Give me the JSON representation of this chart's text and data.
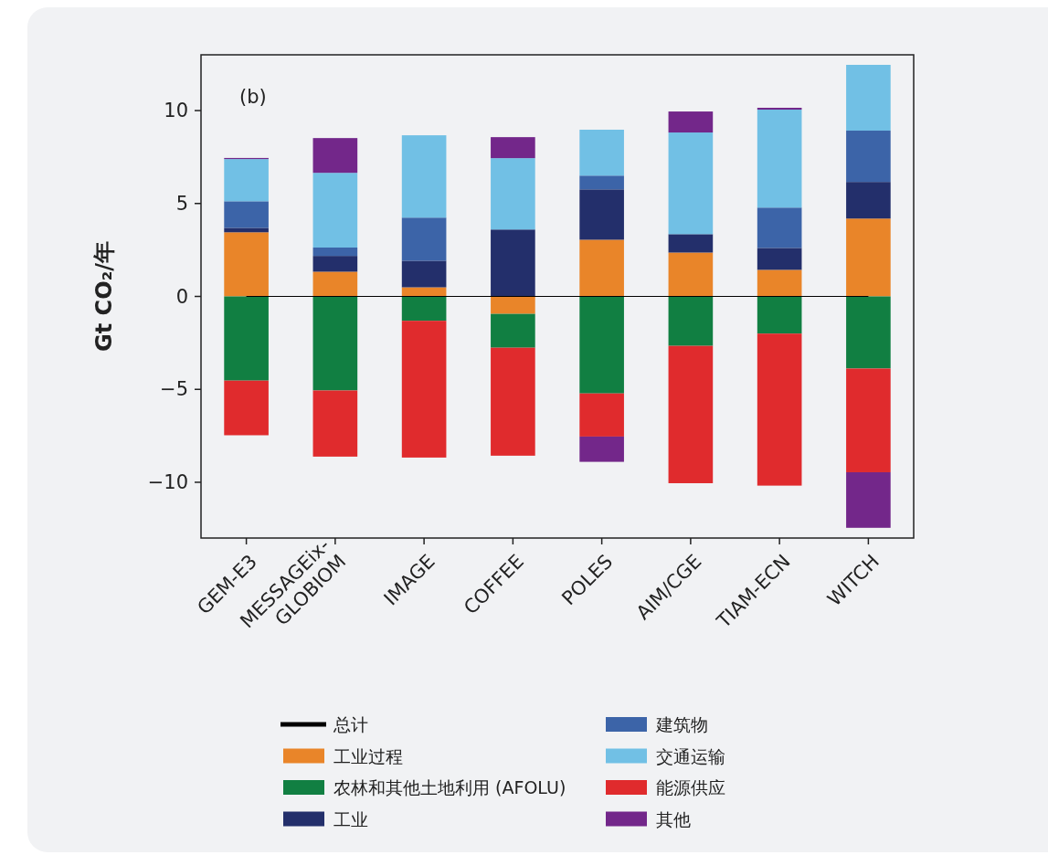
{
  "chart_data": {
    "type": "bar",
    "stacked": true,
    "ylabel": "Gt CO₂/年",
    "annotations": [
      "(b)"
    ],
    "categories": [
      "GEM-E3",
      "MESSAGEix-GLOBIOM",
      "IMAGE",
      "COFFEE",
      "POLES",
      "AIM/CGE",
      "TIAM-ECN",
      "WITCH"
    ],
    "ylim": [
      -13,
      13
    ],
    "yticks": [
      -10,
      -5,
      0,
      5,
      10
    ],
    "legend": "bottom",
    "series": [
      {
        "name": "总计",
        "type": "line",
        "color": "#000000",
        "values": [
          0,
          0,
          0,
          0,
          0,
          0,
          0,
          0
        ]
      },
      {
        "name": "工业过程",
        "color": "#e98529",
        "values": [
          3.45,
          1.33,
          0.49,
          -0.94,
          3.05,
          2.36,
          1.43,
          4.19
        ]
      },
      {
        "name": "农林和其他土地利用 (AFOLU)",
        "color": "#117f42",
        "values": [
          -4.53,
          -5.06,
          -1.31,
          -1.82,
          -5.22,
          -2.66,
          -2.0,
          -3.88
        ]
      },
      {
        "name": "工业",
        "color": "#232f6b",
        "values": [
          0.24,
          0.85,
          1.43,
          3.6,
          2.71,
          0.99,
          1.18,
          1.97
        ]
      },
      {
        "name": "建筑物",
        "color": "#3c64a8",
        "values": [
          1.43,
          0.45,
          2.32,
          null,
          0.74,
          null,
          2.17,
          2.76
        ]
      },
      {
        "name": "交通运输",
        "color": "#71c0e5",
        "values": [
          2.27,
          4.02,
          4.43,
          3.84,
          2.47,
          5.47,
          5.27,
          3.54
        ]
      },
      {
        "name": "能源供应",
        "color": "#e02b2d",
        "values": [
          -2.94,
          -3.56,
          -7.36,
          -5.81,
          -2.32,
          -7.39,
          -8.18,
          -5.58
        ]
      },
      {
        "name": "其他",
        "color": "#73278a",
        "values": [
          0.06,
          1.87,
          null,
          1.13,
          -1.36,
          1.13,
          0.1,
          -2.99
        ]
      }
    ]
  }
}
